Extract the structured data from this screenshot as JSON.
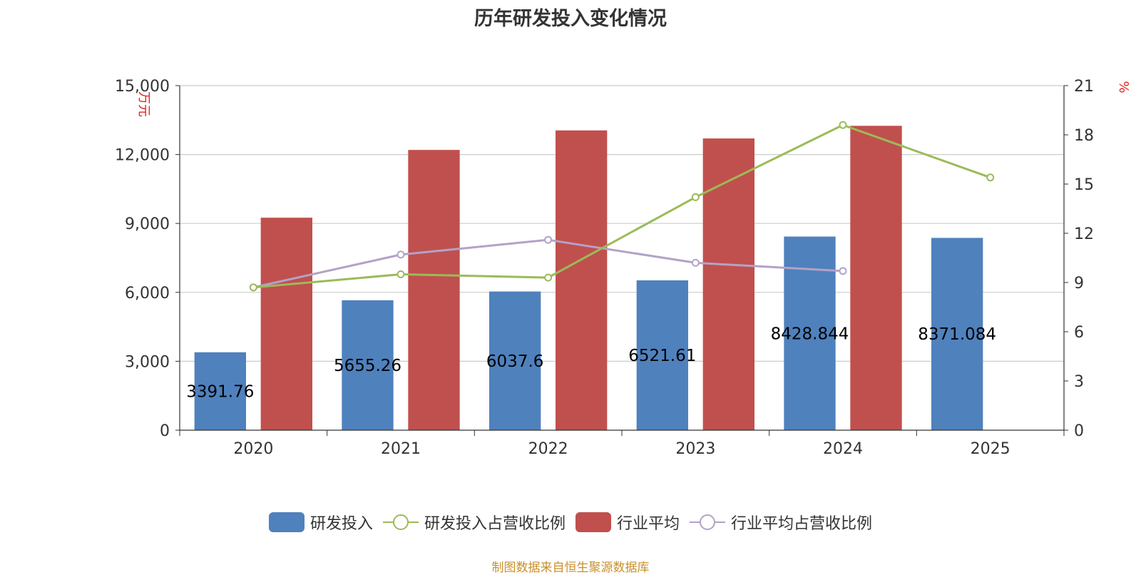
{
  "title": "历年研发投入变化情况",
  "footer": "制图数据来自恒生聚源数据库",
  "chart_data": {
    "type": "bar",
    "title": "历年研发投入变化情况",
    "categories": [
      "2020",
      "2021",
      "2022",
      "2023",
      "2024",
      "2025"
    ],
    "y_left": {
      "label": "万元",
      "min": 0,
      "max": 15000,
      "ticks": [
        0,
        3000,
        6000,
        9000,
        12000,
        15000
      ],
      "tick_labels": [
        "0",
        "3,000",
        "6,000",
        "9,000",
        "12,000",
        "15,000"
      ]
    },
    "y_right": {
      "label": "%",
      "min": 0,
      "max": 21,
      "ticks": [
        0,
        3,
        6,
        9,
        12,
        15,
        18,
        21
      ],
      "tick_labels": [
        "0",
        "3",
        "6",
        "9",
        "12",
        "15",
        "18",
        "21"
      ]
    },
    "grid": true,
    "legend_position": "bottom",
    "series": [
      {
        "name": "研发投入",
        "type": "bar",
        "axis": "left",
        "color": "#4f81bd",
        "values": [
          3391.76,
          5655.26,
          6037.6,
          6521.61,
          8428.844,
          8371.084
        ],
        "labels": [
          "3391.76",
          "5655.26",
          "6037.6",
          "6521.61",
          "8428.844",
          "8371.084"
        ]
      },
      {
        "name": "研发投入占营收比例",
        "type": "line",
        "axis": "right",
        "color": "#9bbb59",
        "values": [
          8.7,
          9.5,
          9.3,
          14.2,
          18.6,
          15.4
        ]
      },
      {
        "name": "行业平均",
        "type": "bar",
        "axis": "left",
        "color": "#c0504d",
        "values": [
          9250,
          12200,
          13050,
          12700,
          13250,
          null
        ]
      },
      {
        "name": "行业平均占营收比例",
        "type": "line",
        "axis": "right",
        "color": "#b3a2c7",
        "values": [
          8.7,
          10.7,
          11.6,
          10.2,
          9.7,
          null
        ]
      }
    ]
  }
}
